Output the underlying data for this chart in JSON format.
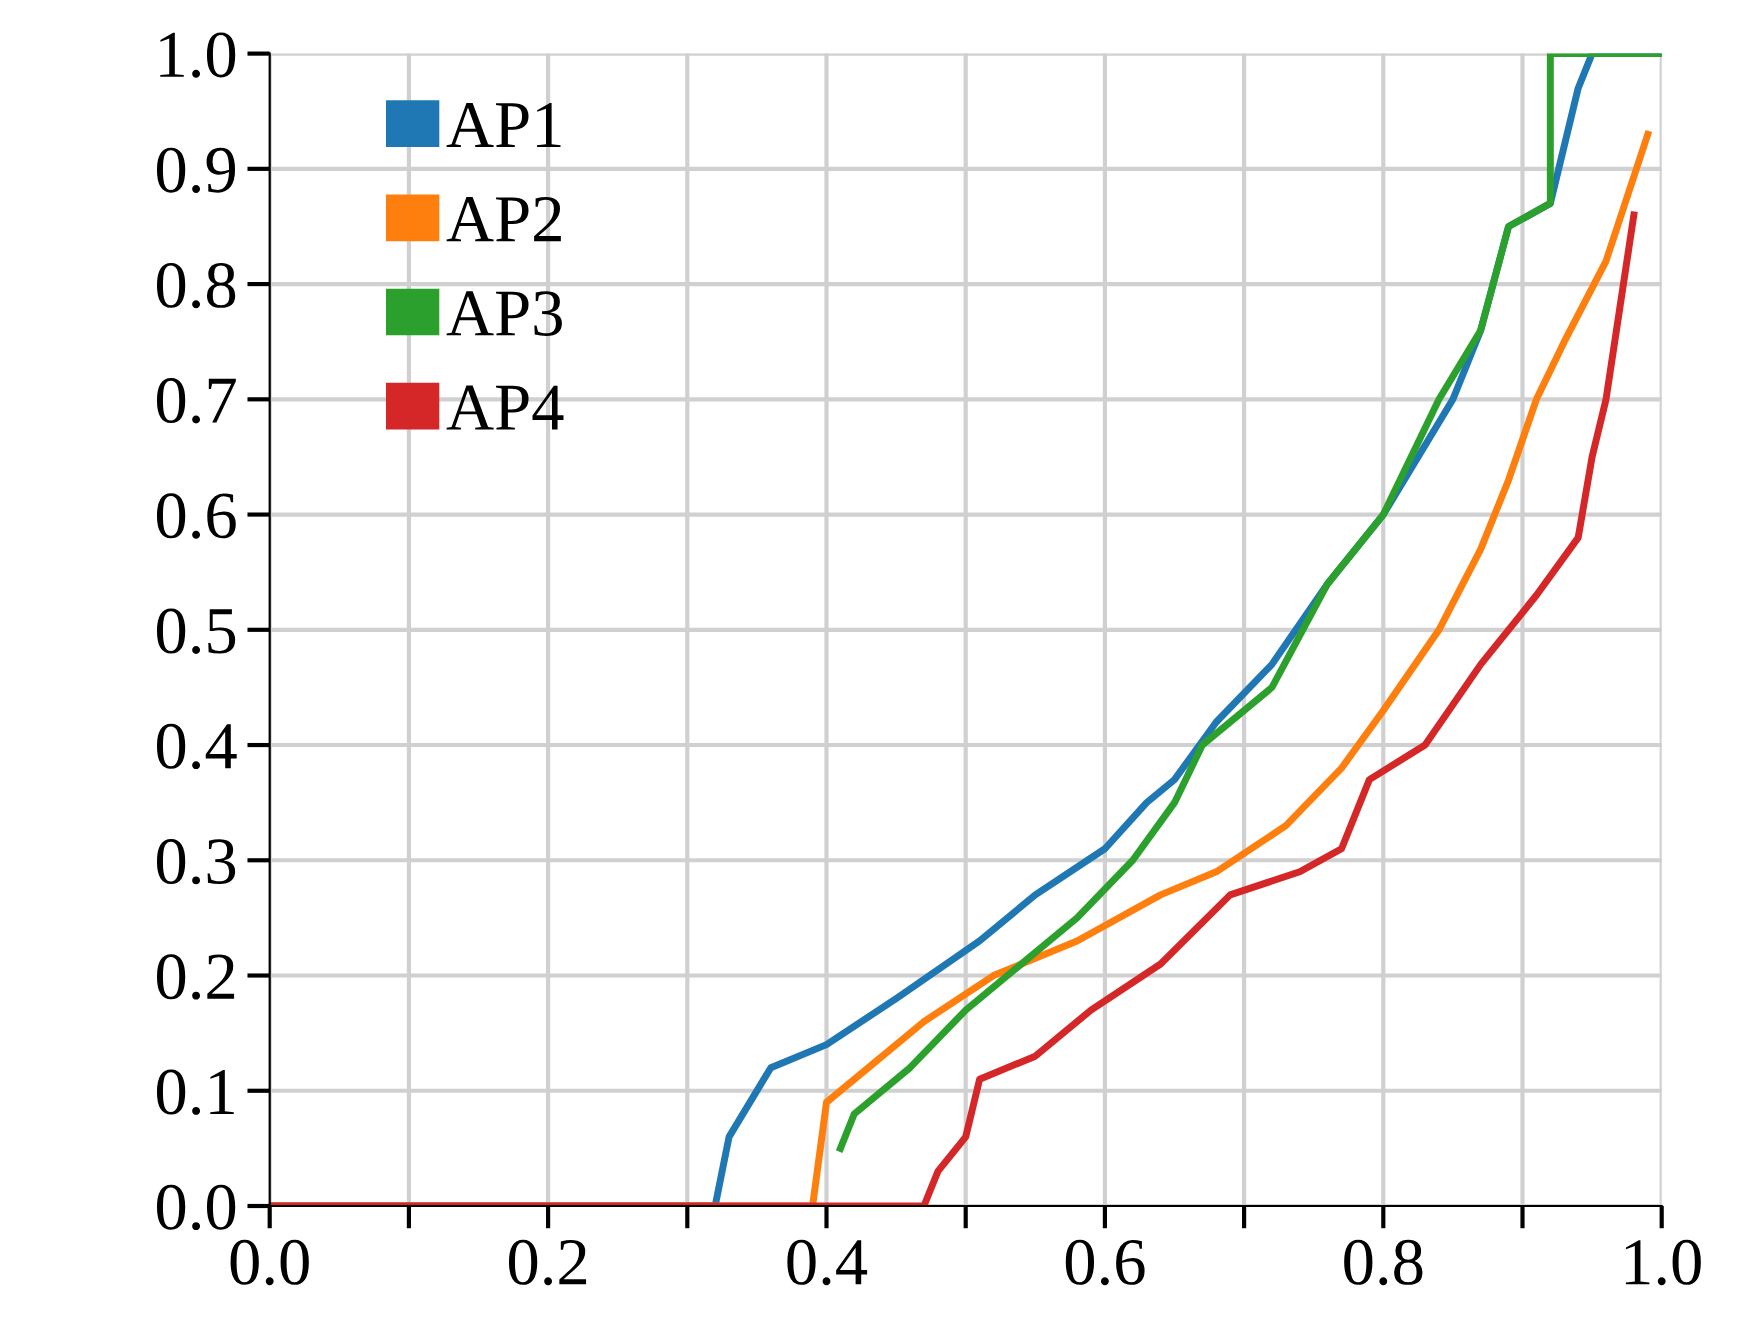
{
  "chart_data": {
    "type": "line",
    "xlim": [
      0.0,
      1.0
    ],
    "ylim": [
      0.0,
      1.0
    ],
    "xticks": [
      {
        "value": 0.0,
        "label": "0.0"
      },
      {
        "value": 0.1,
        "label": null
      },
      {
        "value": 0.2,
        "label": "0.2"
      },
      {
        "value": 0.3,
        "label": null
      },
      {
        "value": 0.4,
        "label": "0.4"
      },
      {
        "value": 0.5,
        "label": null
      },
      {
        "value": 0.6,
        "label": "0.6"
      },
      {
        "value": 0.7,
        "label": null
      },
      {
        "value": 0.8,
        "label": "0.8"
      },
      {
        "value": 0.9,
        "label": null
      },
      {
        "value": 1.0,
        "label": "1.0"
      }
    ],
    "yticks": [
      {
        "value": 0.0,
        "label": "0.0"
      },
      {
        "value": 0.1,
        "label": "0.1"
      },
      {
        "value": 0.2,
        "label": "0.2"
      },
      {
        "value": 0.3,
        "label": "0.3"
      },
      {
        "value": 0.4,
        "label": "0.4"
      },
      {
        "value": 0.5,
        "label": "0.5"
      },
      {
        "value": 0.6,
        "label": "0.6"
      },
      {
        "value": 0.7,
        "label": "0.7"
      },
      {
        "value": 0.8,
        "label": "0.8"
      },
      {
        "value": 0.9,
        "label": "0.9"
      },
      {
        "value": 1.0,
        "label": "1.0"
      }
    ],
    "grid": true,
    "legend": "top left",
    "marker": "none",
    "line_style": "solid",
    "series": [
      {
        "name": "AP1",
        "color": "#1f77b4",
        "x": [
          0.0,
          0.32,
          0.33,
          0.36,
          0.4,
          0.45,
          0.51,
          0.55,
          0.6,
          0.63,
          0.65,
          0.68,
          0.72,
          0.76,
          0.8,
          0.85,
          0.87,
          0.89,
          0.92,
          0.94,
          0.95,
          1.0
        ],
        "values": [
          0.0,
          0.0,
          0.06,
          0.12,
          0.14,
          0.18,
          0.23,
          0.27,
          0.31,
          0.35,
          0.37,
          0.42,
          0.47,
          0.54,
          0.6,
          0.7,
          0.76,
          0.85,
          0.87,
          0.97,
          1.0,
          1.0
        ]
      },
      {
        "name": "AP2",
        "color": "#ff7f0e",
        "x": [
          0.0,
          0.39,
          0.4,
          0.43,
          0.47,
          0.52,
          0.58,
          0.64,
          0.68,
          0.73,
          0.77,
          0.8,
          0.84,
          0.87,
          0.89,
          0.91,
          0.93,
          0.96,
          0.99
        ],
        "values": [
          0.0,
          0.0,
          0.09,
          0.12,
          0.16,
          0.2,
          0.23,
          0.27,
          0.29,
          0.33,
          0.38,
          0.43,
          0.5,
          0.57,
          0.63,
          0.7,
          0.75,
          0.82,
          0.93
        ]
      },
      {
        "name": "AP3",
        "color": "#2ca02c",
        "x": [
          0.41,
          0.42,
          0.46,
          0.5,
          0.54,
          0.58,
          0.62,
          0.65,
          0.67,
          0.72,
          0.76,
          0.8,
          0.84,
          0.87,
          0.89,
          0.92,
          0.92,
          1.0
        ],
        "values": [
          0.05,
          0.08,
          0.12,
          0.17,
          0.21,
          0.25,
          0.3,
          0.35,
          0.4,
          0.45,
          0.54,
          0.6,
          0.7,
          0.76,
          0.85,
          0.87,
          1.0,
          1.0
        ]
      },
      {
        "name": "AP4",
        "color": "#d62728",
        "x": [
          0.0,
          0.47,
          0.48,
          0.5,
          0.51,
          0.55,
          0.59,
          0.64,
          0.69,
          0.74,
          0.77,
          0.79,
          0.83,
          0.87,
          0.91,
          0.94,
          0.95,
          0.96,
          0.97,
          0.98
        ],
        "values": [
          0.0,
          0.0,
          0.03,
          0.06,
          0.11,
          0.13,
          0.17,
          0.21,
          0.27,
          0.29,
          0.31,
          0.37,
          0.4,
          0.47,
          0.53,
          0.58,
          0.65,
          0.7,
          0.78,
          0.86
        ]
      }
    ]
  }
}
